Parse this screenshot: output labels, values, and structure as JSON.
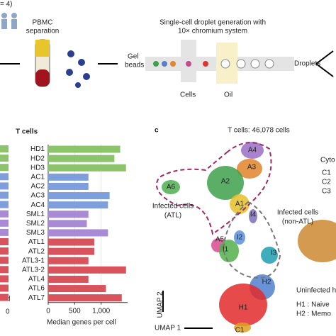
{
  "workflow": {
    "cohort": "= 4)",
    "pbmc": [
      "PBMC",
      "separation"
    ],
    "droplet_title": [
      "Single-cell droplet generation with",
      "10× chromium system"
    ],
    "gel_beads": [
      "Gel",
      "beads"
    ],
    "droplets": "Droplets",
    "cells": "Cells",
    "oil": "Oil"
  },
  "left_panel": {
    "header": "T cells",
    "footer": "red",
    "tick": "0"
  },
  "chart_data": {
    "type": "bar",
    "orientation": "horizontal",
    "header": "T cells",
    "x_label": "Median genes per cell",
    "categories": [
      "HD1",
      "HD2",
      "HD3",
      "AC1",
      "AC2",
      "AC3",
      "AC4",
      "SML1",
      "SML2",
      "SML3",
      "ATL1",
      "ATL2",
      "ATL3-1",
      "ATL3-2",
      "ATL4",
      "ATL6",
      "ATL7"
    ],
    "values": [
      1360,
      1250,
      1470,
      760,
      760,
      1160,
      1130,
      760,
      730,
      1130,
      870,
      870,
      760,
      1470,
      760,
      1090,
      1390
    ],
    "colors": [
      "#8cc46c",
      "#8cc46c",
      "#8cc46c",
      "#7f9fdc",
      "#7f9fdc",
      "#7f9fdc",
      "#7f9fdc",
      "#a98ad4",
      "#a98ad4",
      "#a98ad4",
      "#d9535c",
      "#d9535c",
      "#d9535c",
      "#d9535c",
      "#d9535c",
      "#d9535c",
      "#d9535c"
    ],
    "xlim": [
      0,
      1500
    ],
    "xticks": [
      0,
      500,
      {
        "value": 1000,
        "label": "1,000"
      }
    ],
    "grid": true
  },
  "umap": {
    "panel_label": "c",
    "title": "T cells: 46,078 cells",
    "clusters": [
      "A4",
      "A3",
      "A2",
      "A6",
      "A1",
      "I4",
      "I2",
      "A5",
      "I1",
      "I3",
      "H2",
      "H1",
      "C1"
    ],
    "atl_label": [
      "Infected cells",
      "(ATL)"
    ],
    "non_atl_label": [
      "Infected cells",
      "(non-ATL)"
    ],
    "cyto": [
      "Cyto",
      "C1",
      "C2",
      "C3"
    ],
    "uninfected": "Uninfected he",
    "h1": "H1 : Naive",
    "h2": "H2 : Memo",
    "axis_y": "UMAP 2",
    "axis_x": "UMAP 1"
  }
}
